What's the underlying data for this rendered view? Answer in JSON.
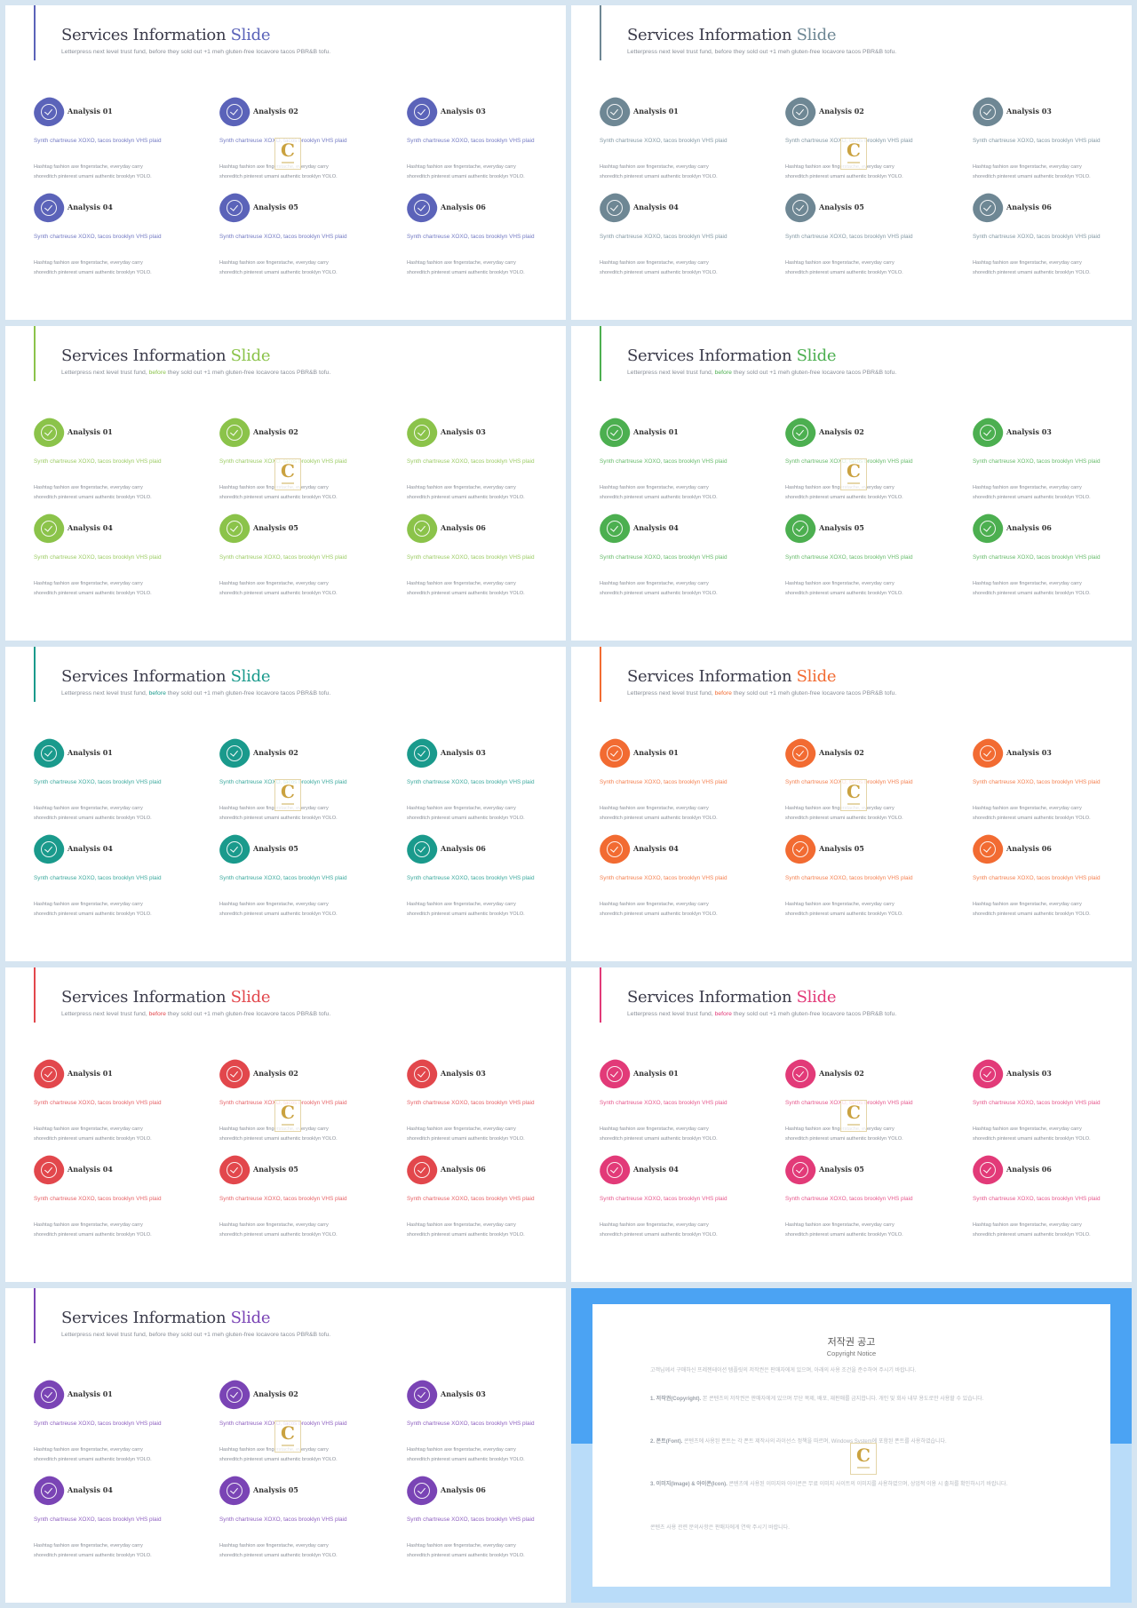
{
  "slides": [
    {
      "accent": "#5b63b9",
      "title_main": "Services Information",
      "title_hl": "Slide",
      "sub_a": "Letterpress next level trust fund, before they sold out +1 meh gluten-free locavore tacos PBR&B tofu.",
      "sub_hl": "",
      "sub_b": "",
      "desc_colored": false
    },
    {
      "accent": "#6e8794",
      "title_main": "Services Information",
      "title_hl": "Slide",
      "sub_a": "Letterpress next level trust fund, before they sold out +1 meh gluten-free locavore tacos PBR&B tofu.",
      "sub_hl": "",
      "sub_b": "",
      "desc_colored": false
    },
    {
      "accent": "#8bc34a",
      "title_main": "Services Information",
      "title_hl": "Slide",
      "sub_a": "Letterpress next level trust fund, ",
      "sub_hl": "before",
      "sub_b": " they sold out +1 meh gluten-free locavore tacos PBR&B tofu.",
      "desc_colored": true
    },
    {
      "accent": "#4caf50",
      "title_main": "Services Information",
      "title_hl": "Slide",
      "sub_a": "Letterpress next level trust fund, ",
      "sub_hl": "before",
      "sub_b": " they sold out +1 meh gluten-free locavore tacos PBR&B tofu.",
      "desc_colored": true
    },
    {
      "accent": "#1a9a8c",
      "title_main": "Services Information",
      "title_hl": "Slide",
      "sub_a": "Letterpress next level trust fund, ",
      "sub_hl": "before",
      "sub_b": " they sold out +1 meh gluten-free locavore tacos PBR&B tofu.",
      "desc_colored": true
    },
    {
      "accent": "#f26b32",
      "title_main": "Services Information",
      "title_hl": "Slide",
      "sub_a": "Letterpress next level trust fund, ",
      "sub_hl": "before",
      "sub_b": " they sold out +1 meh gluten-free locavore tacos PBR&B tofu.",
      "desc_colored": true
    },
    {
      "accent": "#e2474c",
      "title_main": "Services Information",
      "title_hl": "Slide",
      "sub_a": "Letterpress next level trust fund, ",
      "sub_hl": "before",
      "sub_b": " they sold out +1 meh gluten-free locavore tacos PBR&B tofu.",
      "desc_colored": true
    },
    {
      "accent": "#e23a78",
      "title_main": "Services Information",
      "title_hl": "Slide",
      "sub_a": "Letterpress next level trust fund, ",
      "sub_hl": "before",
      "sub_b": " they sold out +1 meh gluten-free locavore tacos PBR&B tofu.",
      "desc_colored": true
    },
    {
      "accent": "#7a44b5",
      "title_main": "Services Information",
      "title_hl": "Slide",
      "sub_a": "Letterpress next level trust fund, before they sold out +1 meh gluten-free locavore tacos PBR&B tofu.",
      "sub_hl": "",
      "sub_b": "",
      "desc_colored": false
    }
  ],
  "items": [
    {
      "label": "Analysis 01",
      "desc": "Synth chartreuse XOXO, tacos brooklyn VHS plaid",
      "text": "Hashtag fashion axe fingerstache, everyday carry shoreditch pinterest umami authentic brooklyn YOLO."
    },
    {
      "label": "Analysis 02",
      "desc": "Synth chartreuse XOXO, tacos brooklyn VHS plaid",
      "text": "Hashtag fashion axe fingerstache, everyday carry shoreditch pinterest umami authentic brooklyn YOLO."
    },
    {
      "label": "Analysis 03",
      "desc": "Synth chartreuse XOXO, tacos brooklyn VHS plaid",
      "text": "Hashtag fashion axe fingerstache, everyday carry shoreditch pinterest umami authentic brooklyn YOLO."
    },
    {
      "label": "Analysis 04",
      "desc": "Synth chartreuse XOXO, tacos brooklyn VHS plaid",
      "text": "Hashtag fashion axe fingerstache, everyday carry shoreditch pinterest umami authentic brooklyn YOLO."
    },
    {
      "label": "Analysis 05",
      "desc": "Synth chartreuse XOXO, tacos brooklyn VHS plaid",
      "text": "Hashtag fashion axe fingerstache, everyday carry shoreditch pinterest umami authentic brooklyn YOLO."
    },
    {
      "label": "Analysis 06",
      "desc": "Synth chartreuse XOXO, tacos brooklyn VHS plaid",
      "text": "Hashtag fashion axe fingerstache, everyday carry shoreditch pinterest umami authentic brooklyn YOLO."
    }
  ],
  "watermark": {
    "letter": "C"
  },
  "copyright": {
    "title": "저작권 공고",
    "subtitle": "Copyright Notice",
    "intro": "고객님께서 구매하신 프레젠테이션 템플릿의 저작권은 판매자에게 있으며, 아래의 사용 조건을 준수하여 주시기 바랍니다.",
    "p1_head": "1. 저작권(Copyright).",
    "p1": " 본 콘텐츠의 저작권은 판매자에게 있으며 무단 복제, 배포, 재판매를 금지합니다. 개인 및 회사 내부 용도로만 사용할 수 있습니다.",
    "p2_head": "2. 폰트(Font).",
    "p2": " 콘텐츠에 사용된 폰트는 각 폰트 제작사의 라이선스 정책을 따르며, Windows System에 포함된 폰트를 사용하였습니다.",
    "p3_head": "3. 이미지(Image) & 아이콘(Icon).",
    "p3": " 콘텐츠에 사용된 이미지와 아이콘은 무료 이미지 사이트의 이미지를 사용하였으며, 상업적 이용 시 출처를 확인하시기 바랍니다.",
    "outro": "콘텐츠 사용 관련 문의사항은 판매자에게 연락 주시기 바랍니다."
  }
}
